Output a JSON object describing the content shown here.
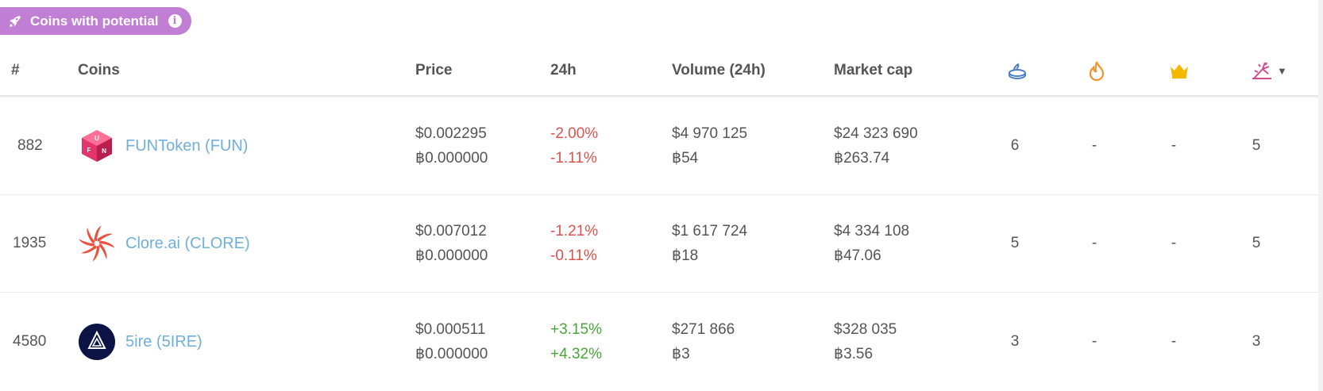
{
  "badge": {
    "label": "Coins with potential",
    "info_glyph": "i",
    "color": "#c07ed4"
  },
  "header": {
    "rank": "#",
    "coins": "Coins",
    "price": "Price",
    "change": "24h",
    "volume": "Volume (24h)",
    "market_cap": "Market cap",
    "icons": [
      "cake-icon",
      "fire-icon",
      "crown-icon",
      "fireworks-icon"
    ]
  },
  "colors": {
    "negative": "#d9534f",
    "positive": "#4aa537",
    "link": "#6fb0d8"
  },
  "rows": [
    {
      "rank": "882",
      "name": "FUNToken (FUN)",
      "logo": "funtoken-logo",
      "price_usd": "$0.002295",
      "price_btc": "฿0.000000",
      "change_usd": "-2.00%",
      "change_btc": "-1.11%",
      "trend": "negative",
      "volume_usd": "$4 970 125",
      "volume_btc": "฿54",
      "mcap_usd": "$24 323 690",
      "mcap_btc": "฿263.74",
      "c1": "6",
      "c2": "-",
      "c3": "-",
      "c4": "5"
    },
    {
      "rank": "1935",
      "name": "Clore.ai (CLORE)",
      "logo": "clore-logo",
      "price_usd": "$0.007012",
      "price_btc": "฿0.000000",
      "change_usd": "-1.21%",
      "change_btc": "-0.11%",
      "trend": "negative",
      "volume_usd": "$1 617 724",
      "volume_btc": "฿18",
      "mcap_usd": "$4 334 108",
      "mcap_btc": "฿47.06",
      "c1": "5",
      "c2": "-",
      "c3": "-",
      "c4": "5"
    },
    {
      "rank": "4580",
      "name": "5ire (5IRE)",
      "logo": "5ire-logo",
      "price_usd": "$0.000511",
      "price_btc": "฿0.000000",
      "change_usd": "+3.15%",
      "change_btc": "+4.32%",
      "trend": "positive",
      "volume_usd": "$271 866",
      "volume_btc": "฿3",
      "mcap_usd": "$328 035",
      "mcap_btc": "฿3.56",
      "c1": "3",
      "c2": "-",
      "c3": "-",
      "c4": "3"
    }
  ]
}
